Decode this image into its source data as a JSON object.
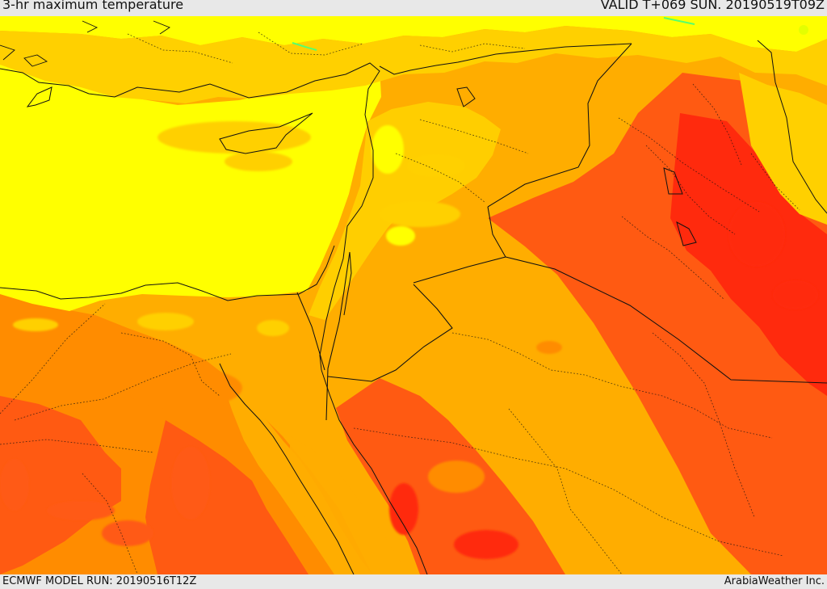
{
  "header": {
    "title": "3-hr maximum temperature",
    "valid": "VALID T+069 SUN. 20190519T09Z"
  },
  "footer": {
    "model_run": "ECMWF MODEL RUN: 20190516T12Z",
    "credit": "ArabiaWeather Inc."
  },
  "colors": {
    "cool_yellow": "#ffff00",
    "yellow_orange": "#ffd000",
    "orange": "#ffad00",
    "deep_orange": "#ff8c00",
    "red_orange": "#ff5a12",
    "red": "#ff2a0d",
    "water_highlight": "#56ff6d"
  }
}
